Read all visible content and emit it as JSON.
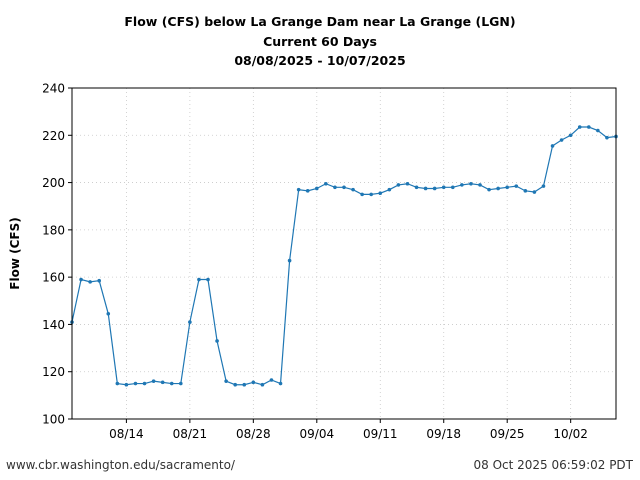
{
  "footer": {
    "source": "www.cbr.washington.edu/sacramento/",
    "timestamp": "08 Oct 2025 06:59:02 PDT"
  },
  "chart_data": {
    "type": "line",
    "title": [
      "Flow (CFS) below La Grange Dam near La Grange (LGN)",
      "Current 60 Days",
      "08/08/2025 - 10/07/2025"
    ],
    "ylabel": "Flow (CFS)",
    "xlabel": "",
    "ylim": [
      100,
      240
    ],
    "yticks": [
      100,
      120,
      140,
      160,
      180,
      200,
      220,
      240
    ],
    "xlim": [
      "2025-08-08",
      "2025-10-07"
    ],
    "xticks": [
      {
        "date": "2025-08-14",
        "label": "08/14"
      },
      {
        "date": "2025-08-21",
        "label": "08/21"
      },
      {
        "date": "2025-08-28",
        "label": "08/28"
      },
      {
        "date": "2025-09-04",
        "label": "09/04"
      },
      {
        "date": "2025-09-11",
        "label": "09/11"
      },
      {
        "date": "2025-09-18",
        "label": "09/18"
      },
      {
        "date": "2025-09-25",
        "label": "09/25"
      },
      {
        "date": "2025-10-02",
        "label": "10/02"
      }
    ],
    "grid": true,
    "color": "#1f77b4",
    "series": [
      {
        "x": [
          "2025-08-08",
          "2025-08-09",
          "2025-08-10",
          "2025-08-11",
          "2025-08-12",
          "2025-08-13",
          "2025-08-14",
          "2025-08-15",
          "2025-08-16",
          "2025-08-17",
          "2025-08-18",
          "2025-08-19",
          "2025-08-20",
          "2025-08-21",
          "2025-08-22",
          "2025-08-23",
          "2025-08-24",
          "2025-08-25",
          "2025-08-26",
          "2025-08-27",
          "2025-08-28",
          "2025-08-29",
          "2025-08-30",
          "2025-08-31",
          "2025-09-01",
          "2025-09-02",
          "2025-09-03",
          "2025-09-04",
          "2025-09-05",
          "2025-09-06",
          "2025-09-07",
          "2025-09-08",
          "2025-09-09",
          "2025-09-10",
          "2025-09-11",
          "2025-09-12",
          "2025-09-13",
          "2025-09-14",
          "2025-09-15",
          "2025-09-16",
          "2025-09-17",
          "2025-09-18",
          "2025-09-19",
          "2025-09-20",
          "2025-09-21",
          "2025-09-22",
          "2025-09-23",
          "2025-09-24",
          "2025-09-25",
          "2025-09-26",
          "2025-09-27",
          "2025-09-28",
          "2025-09-29",
          "2025-09-30",
          "2025-10-01",
          "2025-10-02",
          "2025-10-03",
          "2025-10-04",
          "2025-10-05",
          "2025-10-06",
          "2025-10-07"
        ],
        "values": [
          141,
          159,
          158,
          158.5,
          144.5,
          115,
          114.5,
          115,
          115,
          116,
          115.5,
          115,
          115,
          141,
          159,
          159,
          133,
          116,
          114.5,
          114.5,
          115.5,
          114.5,
          116.5,
          115,
          167,
          197,
          196.5,
          197.5,
          199.5,
          198,
          198,
          197,
          195,
          195,
          195.5,
          197,
          199,
          199.5,
          198,
          197.5,
          197.5,
          198,
          198,
          199,
          199.5,
          199,
          197,
          197.5,
          198,
          198.5,
          196.5,
          196,
          198.5,
          215.5,
          218,
          220,
          223.5,
          223.5,
          222,
          219,
          219.5
        ]
      }
    ]
  }
}
